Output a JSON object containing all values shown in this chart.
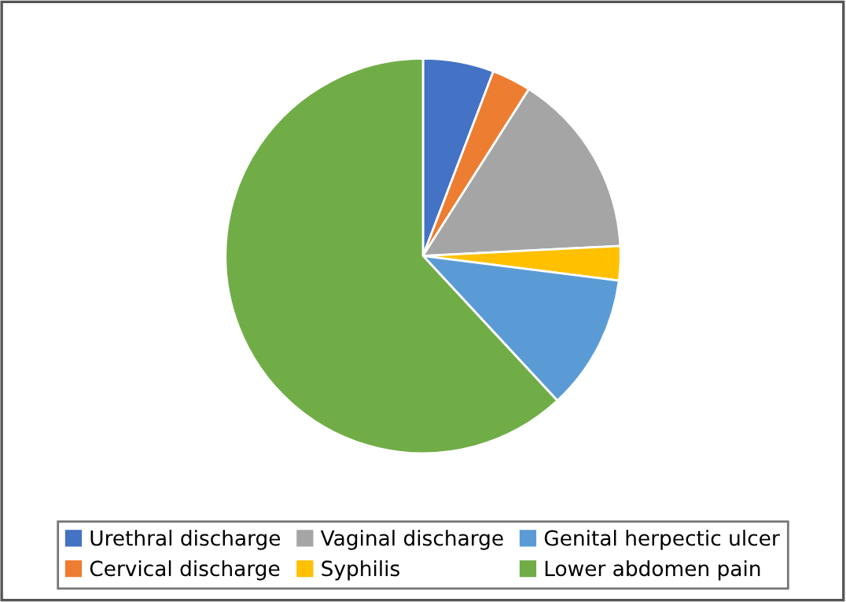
{
  "chart_data": {
    "type": "pie",
    "categories": [
      "Urethral discharge",
      "Cervical discharge",
      "Vaginal discharge",
      "Syphilis",
      "Genital herpectic ulcer",
      "Lower abdomen pain"
    ],
    "values": [
      5.8,
      3.2,
      15.2,
      2.8,
      11.1,
      61.9
    ],
    "colors": [
      "#4472c4",
      "#ed7d31",
      "#a5a5a5",
      "#ffc000",
      "#5b9bd5",
      "#70ad47"
    ],
    "legend": "bottom"
  }
}
